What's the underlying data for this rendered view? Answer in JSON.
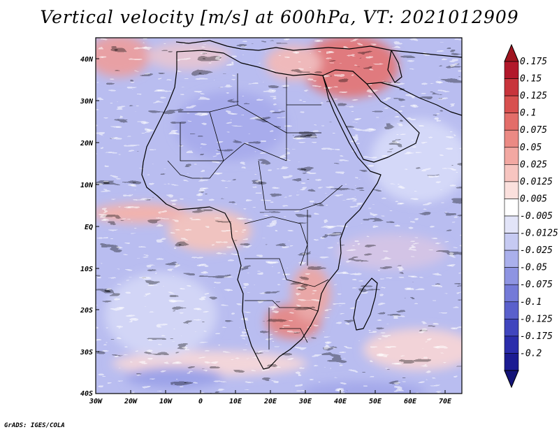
{
  "title": "Vertical velocity [m/s] at 600hPa, VT: 2021012909",
  "footer": "GrADS: IGES/COLA",
  "map": {
    "region": "Africa",
    "lon_range": [
      -30,
      75
    ],
    "lat_range": [
      -40,
      45
    ],
    "lat_labels": [
      "40N",
      "30N",
      "20N",
      "10N",
      "EQ",
      "10S",
      "20S",
      "30S",
      "40S"
    ],
    "lon_labels": [
      "30W",
      "20W",
      "10W",
      "0",
      "10E",
      "20E",
      "30E",
      "40E",
      "50E",
      "60E",
      "70E"
    ]
  },
  "colorbar": {
    "labels": [
      "0.175",
      "0.15",
      "0.125",
      "0.1",
      "0.075",
      "0.05",
      "0.025",
      "0.0125",
      "0.005",
      "-0.005",
      "-0.0125",
      "-0.025",
      "-0.05",
      "-0.075",
      "-0.1",
      "-0.125",
      "-0.175",
      "-0.2"
    ],
    "colors": [
      "#b2182b",
      "#c8343c",
      "#d8504f",
      "#e36d69",
      "#eb8a84",
      "#f2a8a2",
      "#f7c5c0",
      "#fbe0dd",
      "#ffffff",
      "#e2e4f8",
      "#c6caf2",
      "#aab0ec",
      "#8e94e2",
      "#747ad8",
      "#5a60cc",
      "#4045be",
      "#2b2dab",
      "#1c1c92"
    ],
    "top_color": "#a01520",
    "bottom_color": "#141478"
  }
}
